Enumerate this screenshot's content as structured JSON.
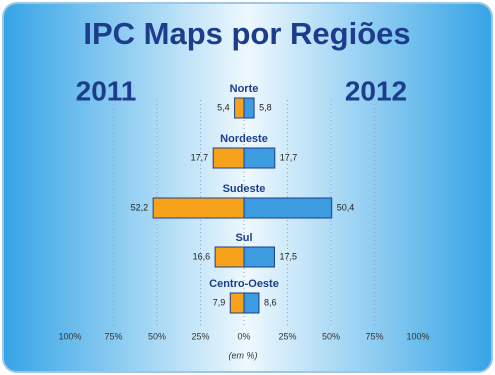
{
  "chart_data": {
    "type": "butterfly",
    "title": "IPC Maps por Regiões",
    "xlabel": "(em %)",
    "categories": [
      "Norte",
      "Nordeste",
      "Sudeste",
      "Sul",
      "Centro-Oeste"
    ],
    "series": [
      {
        "name": "2011",
        "color": "#f7a21b",
        "values": [
          -5.4,
          -17.7,
          -52.2,
          -16.6,
          -7.9
        ],
        "value_labels": [
          "5,4",
          "17,7",
          "52,2",
          "16,6",
          "7,9"
        ]
      },
      {
        "name": "2012",
        "color": "#3d9be0",
        "values": [
          5.8,
          17.7,
          50.4,
          17.5,
          8.6
        ],
        "value_labels": [
          "5,8",
          "17,7",
          "50,4",
          "17,5",
          "8,6"
        ]
      }
    ],
    "xlim": [
      -100,
      100
    ],
    "xticks": [
      {
        "value": -100,
        "label": "100%"
      },
      {
        "value": -75,
        "label": "75%"
      },
      {
        "value": -50,
        "label": "50%"
      },
      {
        "value": -25,
        "label": "25%"
      },
      {
        "value": 0,
        "label": "0%"
      },
      {
        "value": 25,
        "label": "25%"
      },
      {
        "value": 50,
        "label": "50%"
      },
      {
        "value": 75,
        "label": "75%"
      },
      {
        "value": 100,
        "label": "100%"
      }
    ],
    "grid": true
  }
}
